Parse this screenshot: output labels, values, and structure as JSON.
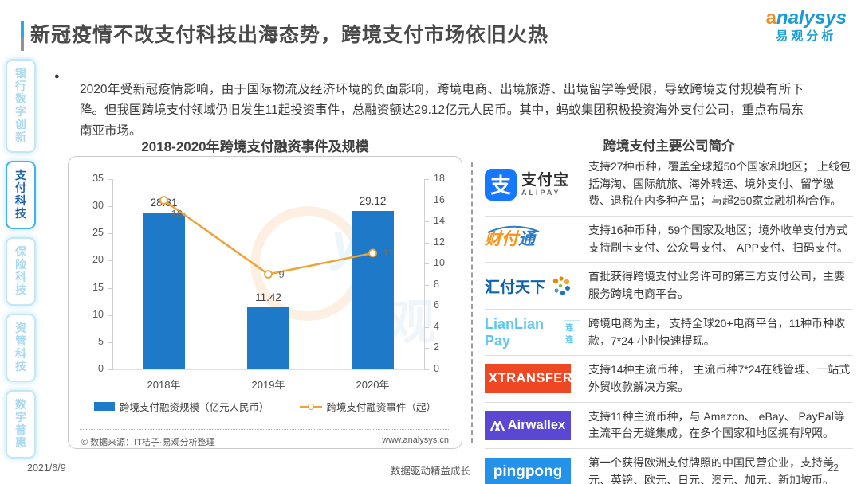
{
  "header": {
    "title": "新冠疫情不改支付科技出海态势，跨境支付市场依旧火热",
    "logo": {
      "brand": "analysys",
      "brand_cn": "易观分析"
    }
  },
  "sidebar": {
    "items": [
      {
        "label": "银行数字创新",
        "active": false
      },
      {
        "label": "支付科技",
        "active": true
      },
      {
        "label": "保险科技",
        "active": false
      },
      {
        "label": "资管科技",
        "active": false
      },
      {
        "label": "数字普惠",
        "active": false
      }
    ]
  },
  "summary": {
    "bullet": "●",
    "text": "2020年受新冠疫情影响，由于国际物流及经济环境的负面影响，跨境电商、出境旅游、出境留学等受限，导致跨境支付规模有所下降。但我国跨境支付领域仍旧发生11起投资事件，总融资额达29.12亿元人民币。其中，蚂蚁集团积极投资海外支付公司，重点布局东南亚市场。"
  },
  "chart_data": {
    "type": "bar",
    "title": "2018-2020年跨境支付融资事件及规模",
    "categories": [
      "2018年",
      "2019年",
      "2020年"
    ],
    "series": [
      {
        "name": "跨境支付融资规模（亿元人民币）",
        "type": "bar",
        "axis": "left",
        "color": "#1e7ac8",
        "values": [
          28.81,
          11.42,
          29.12
        ]
      },
      {
        "name": "跨境支付融资事件（起）",
        "type": "line",
        "axis": "right",
        "color": "#eda338",
        "values": [
          16,
          9,
          11
        ]
      }
    ],
    "left_axis": {
      "min": 0,
      "max": 35,
      "step": 5
    },
    "right_axis": {
      "min": 0,
      "max": 18,
      "step": 2
    },
    "legend_position": "bottom",
    "source_left": "© 数据来源：IT桔子·易观分析整理",
    "source_right": "www.analysys.cn"
  },
  "companies": {
    "title": "跨境支付主要公司简介",
    "rows": [
      {
        "name": "alipay",
        "icon_char": "支",
        "logo_main": "支付宝",
        "logo_sub": "ALIPAY",
        "desc": "支持27种币种，覆盖全球超50个国家和地区； 上线包括海淘、国际航旅、海外转运、境外支付、留学缴费、退税在内多种产品；与超250家金融机构合作。"
      },
      {
        "name": "tenpay",
        "logo_main": "财付",
        "logo_accent": "通",
        "desc": "支持16种币种，59个国家及地区；境外收单支付方式支持刷卡支付、公众号支付、 APP支付、扫码支付。"
      },
      {
        "name": "huifutianxia",
        "logo_main": "汇付天下",
        "desc": "首批获得跨境支付业务许可的第三方支付公司，主要服务跨境电商平台。"
      },
      {
        "name": "lianlianpay",
        "logo_main": "LianLian Pay",
        "logo_sub": "连连",
        "desc": "跨境电商为主， 支持全球20+电商平台，11种币种收款，7*24 小时快速提现。"
      },
      {
        "name": "xtransfer",
        "logo_main": "XTRANSFER",
        "desc": "支持14种主流币种， 主流币种7*24在线管理、一站式外贸收款解决方案。"
      },
      {
        "name": "airwallex",
        "logo_main": "Airwallex",
        "desc": "支持11种主流币种，与 Amazon、 eBay、 PayPal等主流平台无缝集成，在多个国家和地区拥有牌照。"
      },
      {
        "name": "pingpong",
        "logo_main": "pingpong",
        "desc": "第一个获得欧洲支付牌照的中国民营企业，支持美元、英镑、欧元、日元、澳元、加元、新加坡币。"
      }
    ]
  },
  "footer": {
    "date": "2021/6/9",
    "slogan": "数据驱动精益成长",
    "page": "22"
  }
}
